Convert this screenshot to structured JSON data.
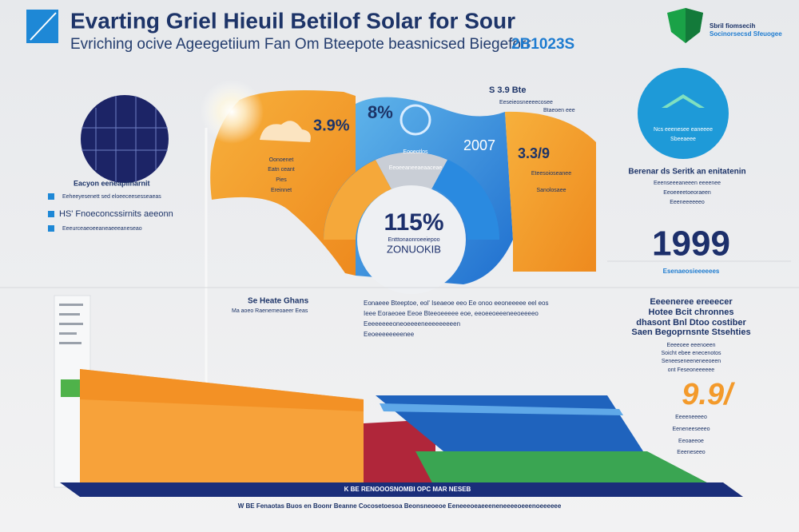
{
  "header": {
    "title": "Evarting Griel Hieuil Betilof Solar for Sour",
    "subtitle": "Evriching ocive Ageegetiium Fan Om Bteepote beasnicsed Biegeforr",
    "code": "2B1023S",
    "badge_lines": [
      "Sbril fiomsecih",
      "Socinorsecsd Sfeuogee"
    ]
  },
  "left_panel": {
    "heading": "Eacyon eeneaplinarnit",
    "items": [
      "Eeheeyesenett sed eloeeceesesseaeas",
      "HS' Fnoeconcssirnits aeeonn",
      "Eeeurceaeoeeaneaeeeaneseao"
    ]
  },
  "center": {
    "top_note": "S 3.9 Bte",
    "top_note_lines": [
      "Eeseieosneeeecosee",
      "Btaeoen eee"
    ],
    "stat_orange": "3.9%",
    "orange_text": [
      "Oonoenet",
      "Eatn ceant",
      "Pies",
      "Ereinnet"
    ],
    "stat_blue": "8%",
    "blue_text": [
      "Eooeotlos",
      "Eeoeeaneeaeaaceae"
    ],
    "stat_year": "2007",
    "stat_right": "3.3/9",
    "right_text": [
      "Eteesoioseanee",
      "Sanolosaee"
    ],
    "donut_value": "115%",
    "donut_caption": "Entttonaonroeeiepoo",
    "donut_label": "ZONUOKIB"
  },
  "right_panel": {
    "circle_lines": [
      "Ncs eeenesee eaneeee",
      "Sbeeaeee"
    ],
    "heading": "Berenar ds Seritk an enitatenin",
    "lines": [
      "Eeenseeeaneeen eeeenee",
      "Eeoeeeetoeoraeen",
      "Eeeneeeeeeo"
    ],
    "year": "1999",
    "year_caption": "Esenaeosieeeeees",
    "blocks": [
      "Eeeeneree ereeecer",
      "Hotee Bcit chronnes",
      "dhasont Bnl Dtoo costiber",
      "Saen Begoprnsnte Stsehties"
    ],
    "notes": [
      "Eeeeoee eeenoeen",
      "Soicht ebee enecenotos",
      "Seneeseneeneneeoeen",
      "ont Feseoneeeeee"
    ],
    "stat": "9.9/",
    "stat_lines": [
      "Eeeeneeeeo",
      "Eeneneeseeeo",
      "Eeoaeeoe",
      "Eeeneseeo"
    ]
  },
  "mid": {
    "heading": "Se Heate Ghans",
    "sub": "Ma aoeo Raenemeoaeer Eeas",
    "paragraph": [
      "Eonaeee Bteeptoe, eol' Iseaeoe eeo Ee onoo eeoneeeee eel eos",
      "Ieee Eoraeoee Eeoe Bteeoeeeee eoe, eeoeeoeeeneeoeeeeo",
      "Eeeeeeeeoneoeeeeneeeeeeeeen",
      "Eeoeeeeeeeenee"
    ]
  },
  "footer": {
    "band": "K BE RENOOOSNOMBI OPC MAR NESEB",
    "text": "W BE Fenaotas Buos en Boonr Beanne Cocosetoesoa Beonsneoeoe Eeneeeoeaeeeneneeeeoeeenoeeeeee"
  }
}
